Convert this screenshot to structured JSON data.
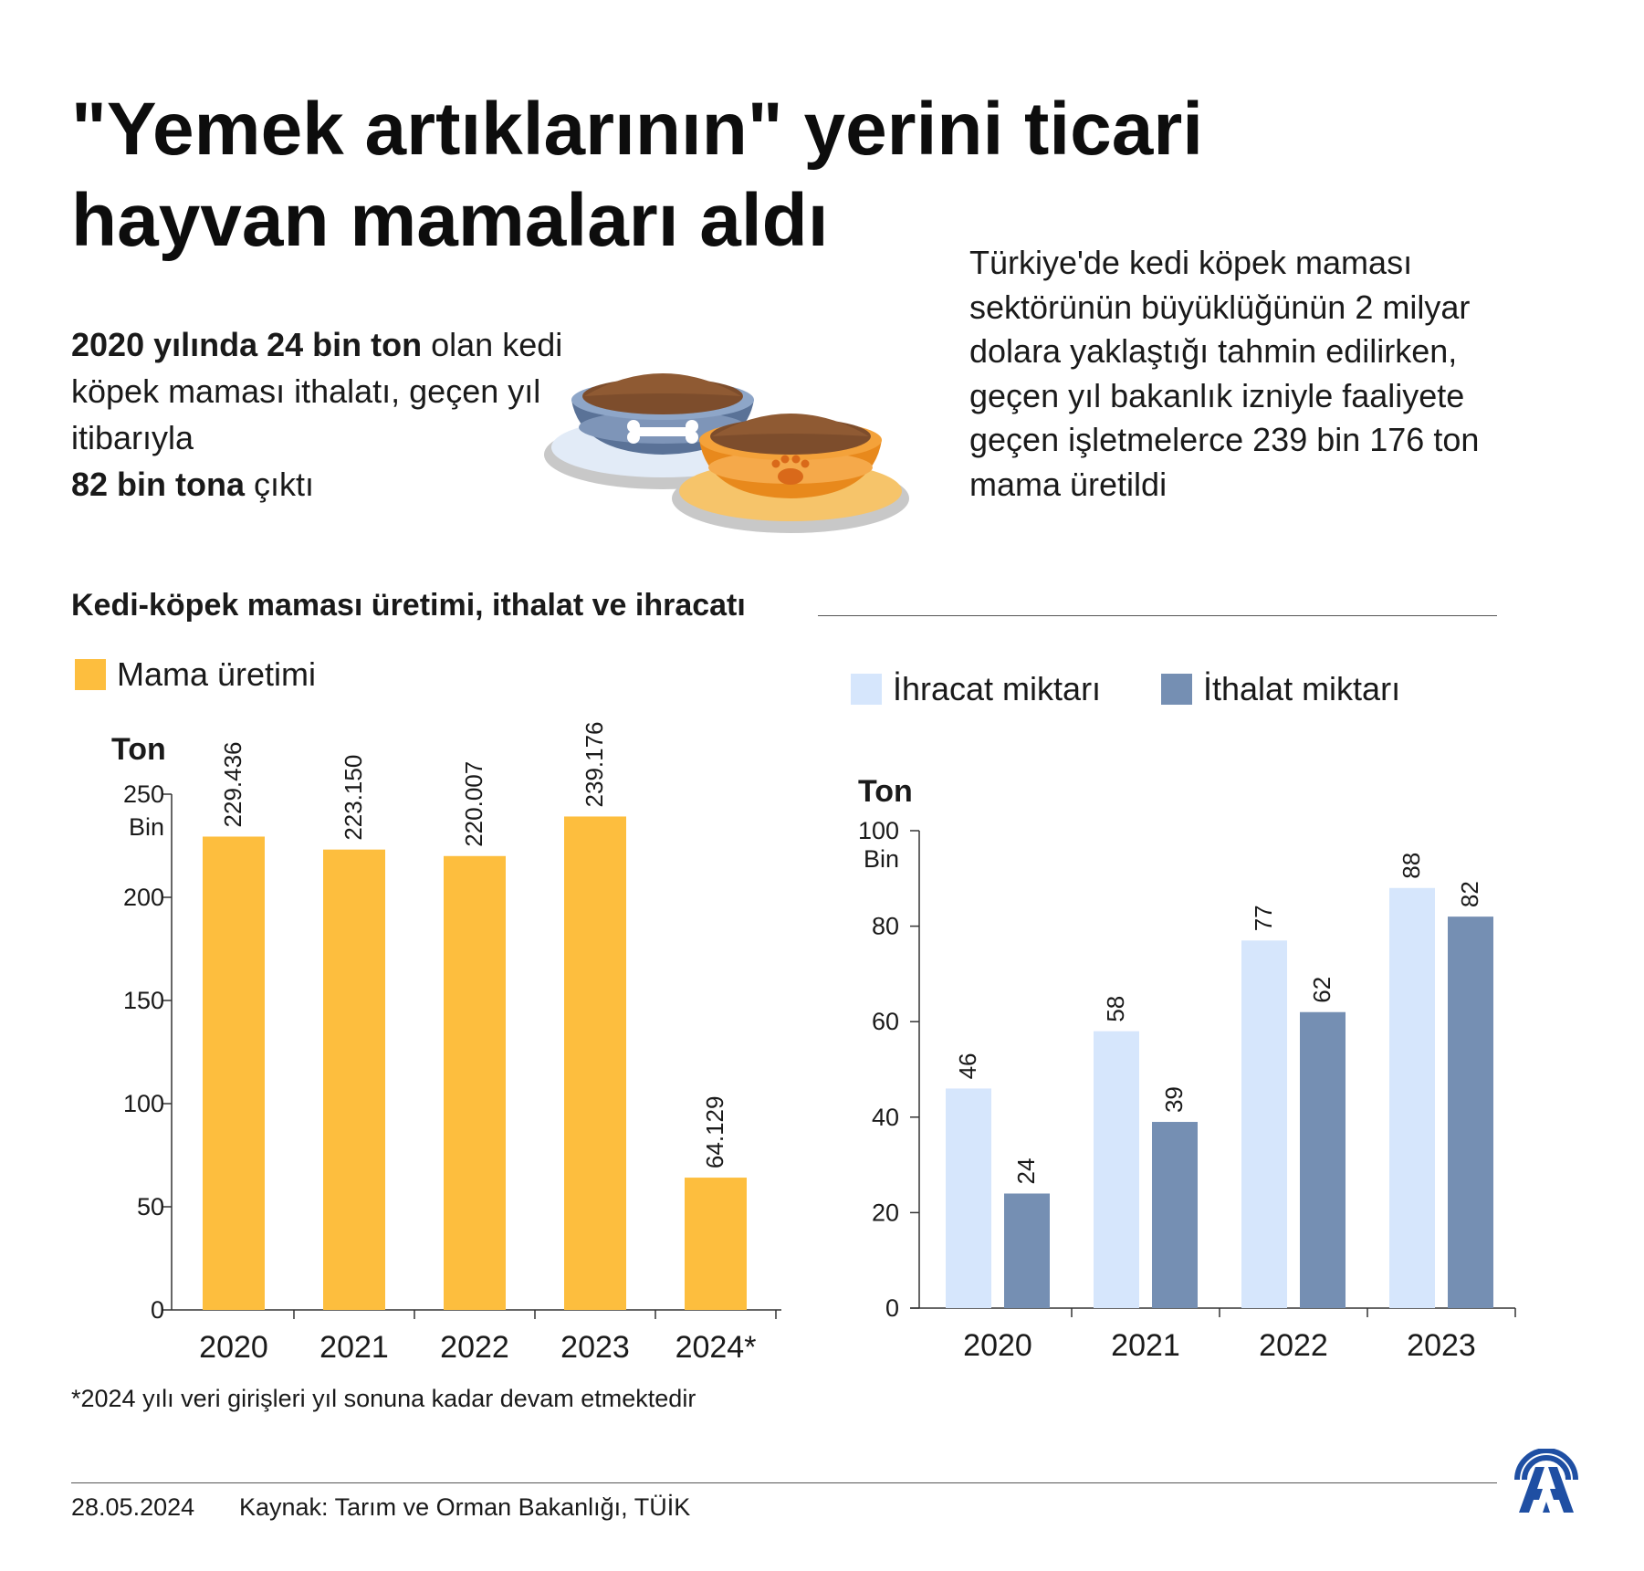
{
  "title": "\"Yemek artıklarının\" yerini ticari hayvan mamaları aldı",
  "lead": {
    "p1_bold": "2020 yılında 24 bin ton",
    "p1_rest": " olan kedi köpek maması ithalatı, geçen yıl itibarıyla ",
    "p2_bold": "82 bin tona",
    "p2_rest": " çıktı"
  },
  "right_text": "Türkiye'de kedi köpek maması sektörünün büyüklüğünün 2 milyar dolara yaklaştığı tahmin edilirken, geçen yıl bakanlık izniyle faaliyete geçen işletmelerce 239 bin 176 ton mama üretildi",
  "section_title": "Kedi-köpek maması üretimi, ithalat ve ihracatı",
  "colors": {
    "production": "#FDBE3E",
    "export": "#D6E6FC",
    "import": "#758FB3",
    "axis": "#333333"
  },
  "icons": [
    "pet-food-bowls-illustration",
    "aa-logo"
  ],
  "chart_data": [
    {
      "type": "bar",
      "legend": [
        "Mama üretimi"
      ],
      "ylabel": "Ton",
      "ylabel_unit": "Bin",
      "categories": [
        "2020",
        "2021",
        "2022",
        "2023",
        "2024*"
      ],
      "series": [
        {
          "name": "Mama üretimi",
          "values": [
            229.436,
            223.15,
            220.007,
            239.176,
            64.129
          ]
        }
      ],
      "data_labels": [
        "229.436",
        "223.150",
        "220.007",
        "239.176",
        "64.129"
      ],
      "yticks": [
        0,
        50,
        100,
        150,
        200,
        250
      ],
      "ytick_labels": [
        "0",
        "50",
        "100",
        "150",
        "200",
        "250"
      ],
      "ylim": [
        0,
        250
      ],
      "grid": false
    },
    {
      "type": "bar",
      "legend": [
        "İhracat miktarı",
        "İthalat miktarı"
      ],
      "ylabel": "Ton",
      "ylabel_unit": "Bin",
      "categories": [
        "2020",
        "2021",
        "2022",
        "2023"
      ],
      "series": [
        {
          "name": "İhracat miktarı",
          "values": [
            46,
            58,
            77,
            88
          ]
        },
        {
          "name": "İthalat miktarı",
          "values": [
            24,
            39,
            62,
            82
          ]
        }
      ],
      "yticks": [
        0,
        20,
        40,
        60,
        80,
        100
      ],
      "ytick_labels": [
        "0",
        "20",
        "40",
        "60",
        "80",
        "100"
      ],
      "ylim": [
        0,
        100
      ],
      "grid": false
    }
  ],
  "footnote": "*2024 yılı veri girişleri yıl sonuna kadar devam etmektedir",
  "footer": {
    "date": "28.05.2024",
    "source": "Kaynak: Tarım ve Orman Bakanlığı, TÜİK"
  }
}
